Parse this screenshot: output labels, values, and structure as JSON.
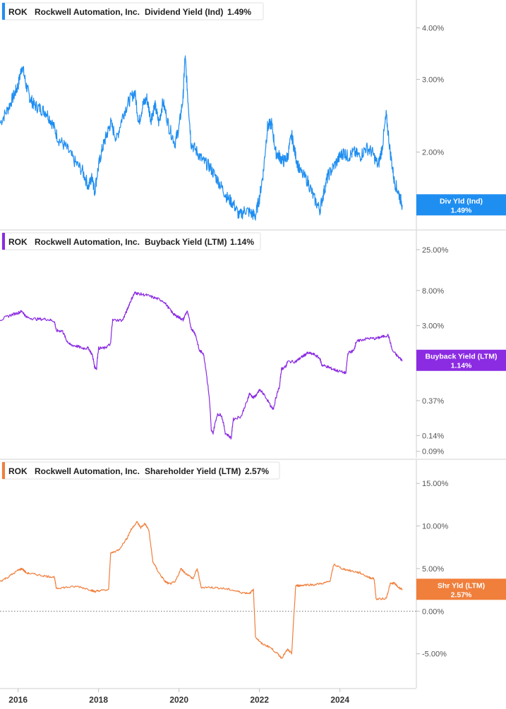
{
  "chart_data": [
    {
      "type": "line",
      "legend": {
        "ticker": "ROK",
        "company": "Rockwell Automation, Inc.",
        "metric": "Dividend Yield (Ind)",
        "value": "1.49%"
      },
      "badge": {
        "label": "Div Yld (Ind)",
        "value": "1.49%"
      },
      "color": "#1f8ef1",
      "y_scale": "log",
      "ylim": [
        1.3,
        4.6
      ],
      "yticks": [
        {
          "v": 4.0,
          "label": "4.00%"
        },
        {
          "v": 3.0,
          "label": "3.00%"
        },
        {
          "v": 2.0,
          "label": "2.00%"
        }
      ],
      "series": [
        {
          "x": [
            2015.55,
            2015.75,
            2015.9,
            2016.0,
            2016.1,
            2016.2,
            2016.3,
            2016.4,
            2016.55,
            2016.7,
            2016.85,
            2017.0,
            2017.2,
            2017.4,
            2017.6,
            2017.75,
            2017.85,
            2017.9,
            2018.0,
            2018.1,
            2018.2,
            2018.3,
            2018.45,
            2018.6,
            2018.75,
            2018.9,
            2019.0,
            2019.1,
            2019.2,
            2019.3,
            2019.4,
            2019.5,
            2019.6,
            2019.75,
            2019.9,
            2020.0,
            2020.1,
            2020.15,
            2020.22,
            2020.3,
            2020.45,
            2020.6,
            2020.75,
            2020.9,
            2021.05,
            2021.2,
            2021.35,
            2021.5,
            2021.65,
            2021.8,
            2021.9,
            2022.0,
            2022.1,
            2022.2,
            2022.3,
            2022.4,
            2022.5,
            2022.6,
            2022.7,
            2022.8,
            2022.9,
            2023.0,
            2023.2,
            2023.35,
            2023.5,
            2023.6,
            2023.7,
            2023.85,
            2024.0,
            2024.1,
            2024.2,
            2024.35,
            2024.5,
            2024.65,
            2024.8,
            2024.95,
            2025.05,
            2025.15,
            2025.25,
            2025.35,
            2025.45,
            2025.55
          ],
          "values": [
            2.35,
            2.55,
            2.75,
            2.9,
            3.25,
            2.9,
            2.7,
            2.6,
            2.55,
            2.5,
            2.35,
            2.15,
            2.05,
            1.9,
            1.8,
            1.65,
            1.75,
            1.6,
            1.85,
            2.05,
            2.2,
            2.35,
            2.15,
            2.45,
            2.65,
            2.8,
            2.35,
            2.6,
            2.7,
            2.4,
            2.6,
            2.35,
            2.65,
            2.3,
            2.1,
            2.3,
            2.7,
            3.4,
            2.7,
            2.1,
            2.0,
            1.9,
            1.85,
            1.75,
            1.65,
            1.55,
            1.5,
            1.4,
            1.45,
            1.42,
            1.4,
            1.55,
            1.8,
            2.3,
            2.35,
            2.0,
            1.95,
            1.9,
            1.95,
            2.2,
            1.95,
            1.8,
            1.7,
            1.55,
            1.45,
            1.6,
            1.75,
            1.85,
            1.95,
            2.0,
            1.95,
            2.0,
            1.95,
            2.05,
            2.0,
            1.85,
            2.05,
            2.45,
            2.0,
            1.7,
            1.6,
            1.49
          ]
        }
      ]
    },
    {
      "type": "line",
      "legend": {
        "ticker": "ROK",
        "company": "Rockwell Automation, Inc.",
        "metric": "Buyback Yield (LTM)",
        "value": "1.14%"
      },
      "badge": {
        "label": "Buyback Yield (LTM)",
        "value": "1.14%"
      },
      "color": "#8b2be2",
      "y_scale": "log",
      "ylim": [
        0.075,
        40
      ],
      "yticks": [
        {
          "v": 25,
          "label": "25.00%"
        },
        {
          "v": 8,
          "label": "8.00%"
        },
        {
          "v": 3,
          "label": "3.00%"
        },
        {
          "v": 0.37,
          "label": "0.37%"
        },
        {
          "v": 0.14,
          "label": "0.14%"
        },
        {
          "v": 0.09,
          "label": "0.09%"
        }
      ],
      "series": [
        {
          "x": [
            2015.55,
            2015.8,
            2016.0,
            2016.1,
            2016.2,
            2016.45,
            2016.7,
            2016.9,
            2016.95,
            2017.1,
            2017.2,
            2017.3,
            2017.45,
            2017.6,
            2017.75,
            2017.85,
            2017.9,
            2017.95,
            2018.0,
            2018.15,
            2018.3,
            2018.35,
            2018.6,
            2018.7,
            2018.8,
            2018.9,
            2019.0,
            2019.2,
            2019.4,
            2019.6,
            2019.8,
            2019.9,
            2020.0,
            2020.1,
            2020.2,
            2020.3,
            2020.4,
            2020.5,
            2020.6,
            2020.7,
            2020.8,
            2020.85,
            2020.95,
            2021.05,
            2021.15,
            2021.3,
            2021.35,
            2021.55,
            2021.7,
            2021.75,
            2021.85,
            2021.95,
            2022.0,
            2022.1,
            2022.3,
            2022.35,
            2022.5,
            2022.55,
            2022.65,
            2022.7,
            2022.9,
            2023.0,
            2023.1,
            2023.2,
            2023.35,
            2023.5,
            2023.55,
            2023.7,
            2023.8,
            2023.95,
            2024.15,
            2024.2,
            2024.35,
            2024.4,
            2024.5,
            2024.7,
            2024.9,
            2025.05,
            2025.2,
            2025.3,
            2025.45,
            2025.55
          ],
          "values": [
            3.5,
            4.0,
            4.3,
            4.5,
            3.8,
            3.6,
            3.6,
            3.4,
            2.6,
            2.6,
            2.0,
            1.75,
            1.7,
            1.6,
            1.6,
            1.3,
            0.95,
            0.9,
            1.6,
            1.6,
            1.8,
            3.5,
            3.5,
            4.5,
            6.0,
            7.5,
            7.3,
            7.0,
            6.5,
            6.0,
            4.5,
            4.0,
            3.8,
            3.5,
            4.5,
            2.8,
            2.4,
            1.5,
            1.4,
            0.65,
            0.16,
            0.15,
            0.25,
            0.25,
            0.15,
            0.13,
            0.22,
            0.24,
            0.37,
            0.45,
            0.4,
            0.45,
            0.5,
            0.45,
            0.3,
            0.3,
            0.55,
            0.9,
            0.95,
            1.1,
            1.1,
            1.2,
            1.3,
            1.4,
            1.35,
            1.2,
            1.0,
            0.95,
            0.9,
            0.85,
            0.8,
            1.4,
            1.5,
            1.9,
            2.0,
            2.1,
            2.1,
            2.2,
            2.3,
            1.5,
            1.25,
            1.14
          ]
        }
      ]
    },
    {
      "type": "line",
      "legend": {
        "ticker": "ROK",
        "company": "Rockwell Automation, Inc.",
        "metric": "Shareholder Yield (LTM)",
        "value": "2.57%"
      },
      "badge": {
        "label": "Shr Yld (LTM)",
        "value": "2.57%"
      },
      "color": "#f07f3c",
      "y_scale": "linear",
      "ylim": [
        -9.0,
        17.5
      ],
      "zero_line": true,
      "yticks": [
        {
          "v": 15,
          "label": "15.00%"
        },
        {
          "v": 10,
          "label": "10.00%"
        },
        {
          "v": 5,
          "label": "5.00%"
        },
        {
          "v": 0,
          "label": "0.00%"
        },
        {
          "v": -5,
          "label": "-5.00%"
        }
      ],
      "xticks": [
        "2016",
        "2018",
        "2020",
        "2022",
        "2024"
      ],
      "xtick_values": [
        2016,
        2018,
        2020,
        2022,
        2024
      ],
      "xlim": [
        2015.55,
        2025.9
      ],
      "series": [
        {
          "x": [
            2015.55,
            2015.75,
            2016.0,
            2016.1,
            2016.2,
            2016.45,
            2016.7,
            2016.9,
            2016.95,
            2017.2,
            2017.5,
            2017.8,
            2017.9,
            2018.0,
            2018.25,
            2018.3,
            2018.5,
            2018.7,
            2018.8,
            2018.95,
            2019.05,
            2019.15,
            2019.25,
            2019.35,
            2019.5,
            2019.65,
            2019.75,
            2019.9,
            2020.05,
            2020.15,
            2020.35,
            2020.45,
            2020.55,
            2020.8,
            2021.05,
            2021.3,
            2021.55,
            2021.75,
            2021.85,
            2021.9,
            2022.05,
            2022.25,
            2022.45,
            2022.55,
            2022.7,
            2022.8,
            2022.9,
            2023.0,
            2023.15,
            2023.35,
            2023.6,
            2023.75,
            2023.85,
            2024.05,
            2024.3,
            2024.5,
            2024.7,
            2024.85,
            2024.9,
            2025.15,
            2025.25,
            2025.35,
            2025.45,
            2025.55
          ],
          "values": [
            3.5,
            4.0,
            4.8,
            5.0,
            4.5,
            4.3,
            4.1,
            4.0,
            2.7,
            2.8,
            2.9,
            2.5,
            2.3,
            2.4,
            2.5,
            6.8,
            7.2,
            8.5,
            9.5,
            10.5,
            9.8,
            10.3,
            9.5,
            5.8,
            4.5,
            3.5,
            3.2,
            3.4,
            5.0,
            4.5,
            3.8,
            5.0,
            2.8,
            2.8,
            2.7,
            2.5,
            2.2,
            2.1,
            2.5,
            -3.0,
            -3.8,
            -4.2,
            -5.0,
            -5.5,
            -4.5,
            -5.0,
            3.0,
            3.0,
            3.1,
            3.1,
            3.3,
            3.5,
            5.5,
            5.0,
            4.7,
            4.5,
            4.0,
            3.8,
            1.4,
            1.5,
            3.2,
            3.3,
            2.8,
            2.57
          ]
        }
      ]
    }
  ]
}
